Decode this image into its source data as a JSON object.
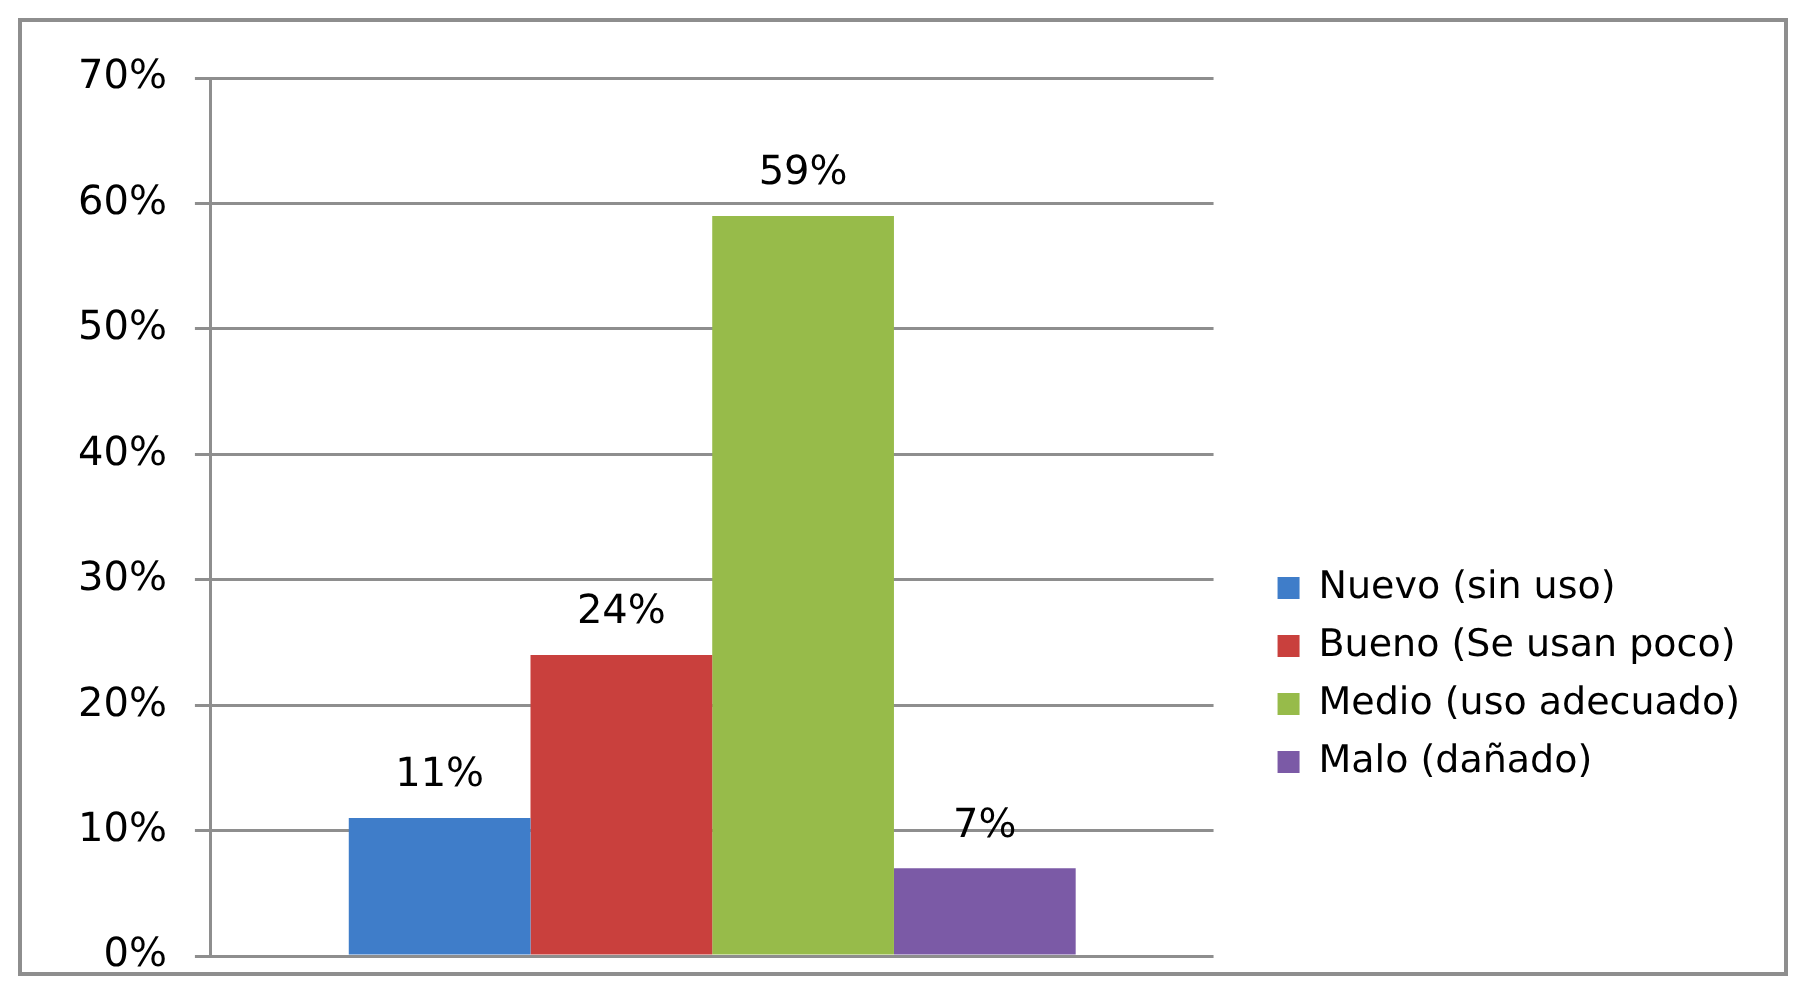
{
  "chart_data": {
    "type": "bar",
    "categories": [
      null
    ],
    "series": [
      {
        "name": "Nuevo (sin uso)",
        "color": "#3f7dc9",
        "values": [
          11
        ],
        "value_labels": [
          "11%"
        ]
      },
      {
        "name": "Bueno (Se usan poco)",
        "color": "#c9403d",
        "values": [
          24
        ],
        "value_labels": [
          "24%"
        ]
      },
      {
        "name": "Medio (uso adecuado)",
        "color": "#97bb4a",
        "values": [
          59
        ],
        "value_labels": [
          "59%"
        ]
      },
      {
        "name": "Malo (dañado)",
        "color": "#7b5aa6",
        "values": [
          7
        ],
        "value_labels": [
          "7%"
        ]
      }
    ],
    "ylim": [
      0,
      70
    ],
    "yticks": [
      {
        "value": 0,
        "label": "0%"
      },
      {
        "value": 10,
        "label": "10%"
      },
      {
        "value": 20,
        "label": "20%"
      },
      {
        "value": 30,
        "label": "30%"
      },
      {
        "value": 40,
        "label": "40%"
      },
      {
        "value": 50,
        "label": "50%"
      },
      {
        "value": 60,
        "label": "60%"
      },
      {
        "value": 70,
        "label": "70%"
      }
    ],
    "grid": "y",
    "legend": "right",
    "tick_labels": "y"
  }
}
